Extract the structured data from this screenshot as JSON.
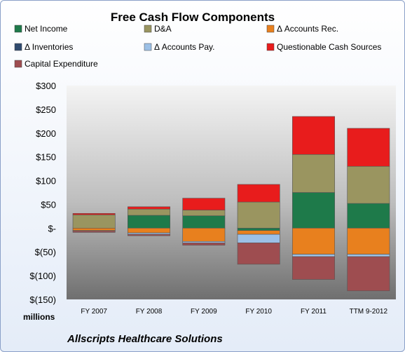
{
  "chart_data": {
    "type": "bar",
    "stacked": true,
    "title": "Free Cash Flow Components",
    "units_label": "millions",
    "footer": "Allscripts Healthcare Solutions",
    "categories": [
      "FY 2007",
      "FY 2008",
      "FY 2009",
      "FY 2010",
      "FY 2011",
      "TTM 9-2012"
    ],
    "ylim": [
      -150,
      300
    ],
    "yticks": [
      "$300",
      "$250",
      "$200",
      "$150",
      "$100",
      "$50",
      "$-",
      "$(50)",
      "$(100)",
      "$(150)"
    ],
    "ytick_values": [
      300,
      250,
      200,
      150,
      100,
      50,
      0,
      -50,
      -100,
      -150
    ],
    "legend_placement": "top",
    "grid": false,
    "series": [
      {
        "name": "Net Income",
        "color": "#1e7a4a",
        "values": [
          0,
          27,
          26,
          -5,
          75,
          52
        ]
      },
      {
        "name": "D&A",
        "color": "#9a9560",
        "values": [
          28,
          13,
          12,
          55,
          80,
          78
        ]
      },
      {
        "name": "Δ Accounts Rec.",
        "color": "#e8801e",
        "values": [
          -5,
          -10,
          -28,
          -8,
          -55,
          -55
        ]
      },
      {
        "name": "Δ Inventories",
        "color": "#2f4a6e",
        "values": [
          0,
          0,
          0,
          0,
          0,
          0
        ]
      },
      {
        "name": "Δ Accounts Pay.",
        "color": "#9cc0e6",
        "values": [
          -1,
          -3,
          -3,
          -18,
          -5,
          -5
        ]
      },
      {
        "name": "Questionable Cash Sources",
        "color": "#e81c1c",
        "values": [
          3,
          5,
          25,
          37,
          80,
          80
        ]
      },
      {
        "name": "Capital Expenditure",
        "color": "#9e4d50",
        "values": [
          -3,
          -3,
          -5,
          -45,
          -48,
          -72
        ]
      }
    ]
  }
}
